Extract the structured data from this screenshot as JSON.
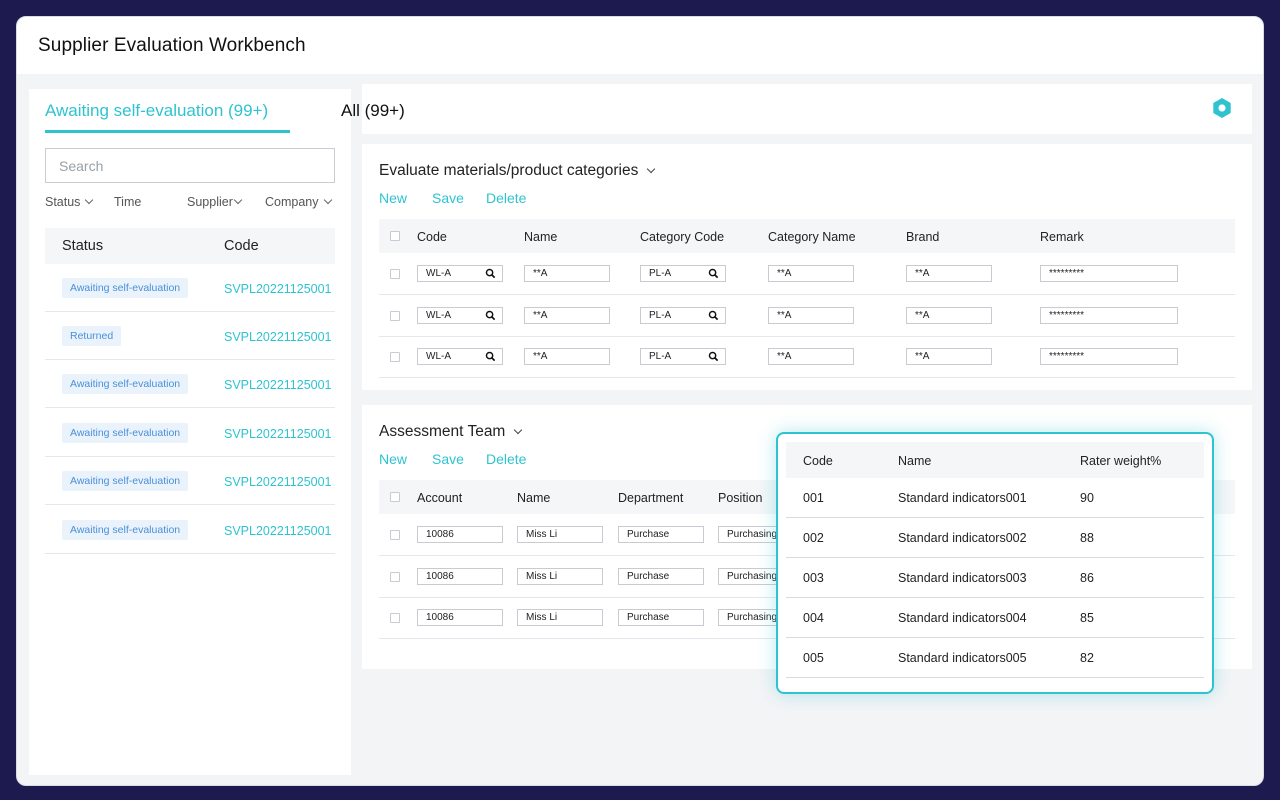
{
  "app": {
    "title": "Supplier Evaluation Workbench"
  },
  "tabs": {
    "active": "Awaiting self-evaluation (99+)",
    "all": "All (99+)"
  },
  "search": {
    "placeholder": "Search",
    "value": ""
  },
  "filters": [
    "Status",
    "Time",
    "Supplier",
    "Company"
  ],
  "left_table": {
    "columns": [
      "Status",
      "Code"
    ],
    "rows": [
      {
        "status": "Awaiting self-evaluation",
        "code": "SVPL20221125001"
      },
      {
        "status": "Returned",
        "code": "SVPL20221125001"
      },
      {
        "status": "Awaiting self-evaluation",
        "code": "SVPL20221125001"
      },
      {
        "status": "Awaiting self-evaluation",
        "code": "SVPL20221125001"
      },
      {
        "status": "Awaiting self-evaluation",
        "code": "SVPL20221125001"
      },
      {
        "status": "Awaiting self-evaluation",
        "code": "SVPL20221125001"
      }
    ]
  },
  "materials": {
    "title": "Evaluate materials/product categories",
    "actions": {
      "new": "New",
      "save": "Save",
      "delete": "Delete"
    },
    "columns": [
      "Code",
      "Name",
      "Category Code",
      "Category Name",
      "Brand",
      "Remark"
    ],
    "rows": [
      {
        "code": "WL-A",
        "name": "**A",
        "category_code": "PL-A",
        "category_name": "**A",
        "brand": "**A",
        "remark": "*********"
      },
      {
        "code": "WL-A",
        "name": "**A",
        "category_code": "PL-A",
        "category_name": "**A",
        "brand": "**A",
        "remark": "*********"
      },
      {
        "code": "WL-A",
        "name": "**A",
        "category_code": "PL-A",
        "category_name": "**A",
        "brand": "**A",
        "remark": "*********"
      }
    ]
  },
  "team": {
    "title": "Assessment Team",
    "actions": {
      "new": "New",
      "save": "Save",
      "delete": "Delete"
    },
    "columns": [
      "Account",
      "Name",
      "Department",
      "Position"
    ],
    "rows": [
      {
        "account": "10086",
        "name": "Miss Li",
        "department": "Purchase",
        "position": "Purchasing"
      },
      {
        "account": "10086",
        "name": "Miss Li",
        "department": "Purchase",
        "position": "Purchasing"
      },
      {
        "account": "10086",
        "name": "Miss Li",
        "department": "Purchase",
        "position": "Purchasing"
      }
    ]
  },
  "popup": {
    "columns": [
      "Code",
      "Name",
      "Rater weight%"
    ],
    "rows": [
      {
        "code": "001",
        "name": "Standard indicators001",
        "weight": "90"
      },
      {
        "code": "002",
        "name": "Standard indicators002",
        "weight": "88"
      },
      {
        "code": "003",
        "name": "Standard indicators003",
        "weight": "86"
      },
      {
        "code": "004",
        "name": "Standard indicators004",
        "weight": "85"
      },
      {
        "code": "005",
        "name": "Standard indicators005",
        "weight": "82"
      }
    ]
  },
  "icons": {
    "settings": "hexagon-settings-icon",
    "lookup": "search-icon"
  },
  "colors": {
    "accent": "#2fc3d0",
    "badge_text": "#4a8fd8",
    "badge_bg": "#eaf3fb",
    "frame": "#1c1a4f"
  }
}
